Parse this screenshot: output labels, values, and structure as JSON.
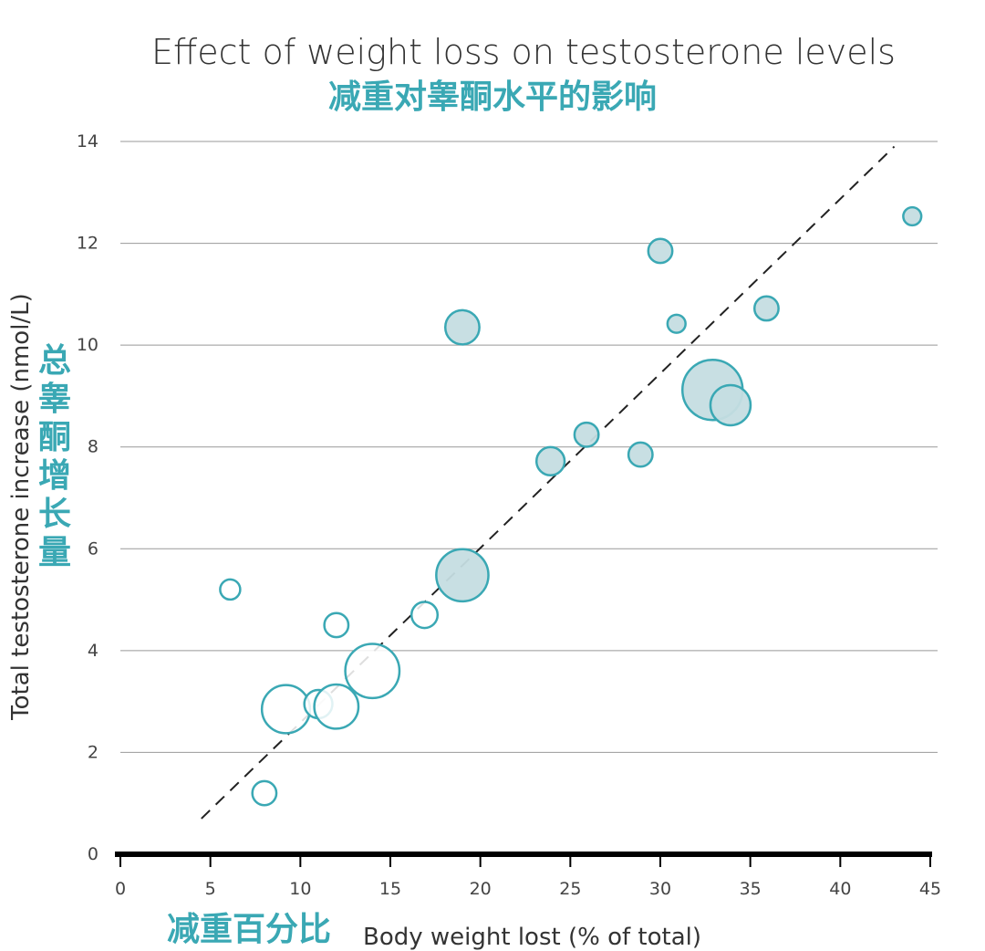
{
  "colors": {
    "accent": "#3aa8b4",
    "bubble_fill": "#c5dde1",
    "grid": "#999999",
    "axis": "#000000",
    "trendline": "#222222"
  },
  "chart_data": {
    "type": "scatter",
    "title": "Effect of weight loss on testosterone levels",
    "subtitle_zh": "减重对睾酮水平的影响",
    "xlabel": "Body weight lost (% of total)",
    "xlabel_zh": "减重百分比",
    "ylabel": "Total testosterone increase (nmol/L)",
    "ylabel_zh": "总睾酮增长量",
    "xlim": [
      0,
      45
    ],
    "ylim": [
      0,
      14
    ],
    "x_ticks": [
      "0",
      "5",
      "10",
      "15",
      "20",
      "25",
      "30",
      "35",
      "40",
      "45"
    ],
    "y_ticks": [
      "0",
      "2",
      "4",
      "6",
      "8",
      "10",
      "12",
      "14"
    ],
    "grid": "horizontal",
    "trendline": {
      "style": "dashed",
      "x": [
        4.5,
        43
      ],
      "y": [
        0.7,
        13.9
      ]
    },
    "points": [
      {
        "x": 6.1,
        "y": 5.2,
        "size": 1.0,
        "filled": false
      },
      {
        "x": 8.0,
        "y": 1.2,
        "size": 1.2,
        "filled": false
      },
      {
        "x": 9.2,
        "y": 2.85,
        "size": 2.4,
        "filled": false
      },
      {
        "x": 11.0,
        "y": 2.95,
        "size": 1.4,
        "filled": false
      },
      {
        "x": 12.0,
        "y": 2.9,
        "size": 2.2,
        "filled": false
      },
      {
        "x": 12.0,
        "y": 4.5,
        "size": 1.2,
        "filled": false
      },
      {
        "x": 14.0,
        "y": 3.6,
        "size": 2.7,
        "filled": false
      },
      {
        "x": 16.9,
        "y": 4.7,
        "size": 1.3,
        "filled": false
      },
      {
        "x": 19.0,
        "y": 5.48,
        "size": 2.6,
        "filled": true
      },
      {
        "x": 19.0,
        "y": 10.35,
        "size": 1.7,
        "filled": true
      },
      {
        "x": 23.9,
        "y": 7.72,
        "size": 1.4,
        "filled": true
      },
      {
        "x": 25.9,
        "y": 8.24,
        "size": 1.2,
        "filled": true
      },
      {
        "x": 28.9,
        "y": 7.85,
        "size": 1.2,
        "filled": true
      },
      {
        "x": 30.0,
        "y": 11.85,
        "size": 1.2,
        "filled": true
      },
      {
        "x": 30.9,
        "y": 10.42,
        "size": 0.9,
        "filled": true
      },
      {
        "x": 32.9,
        "y": 9.12,
        "size": 3.0,
        "filled": true
      },
      {
        "x": 33.9,
        "y": 8.82,
        "size": 2.0,
        "filled": true
      },
      {
        "x": 35.9,
        "y": 10.72,
        "size": 1.2,
        "filled": true
      },
      {
        "x": 44.0,
        "y": 12.53,
        "size": 0.9,
        "filled": true
      }
    ]
  }
}
